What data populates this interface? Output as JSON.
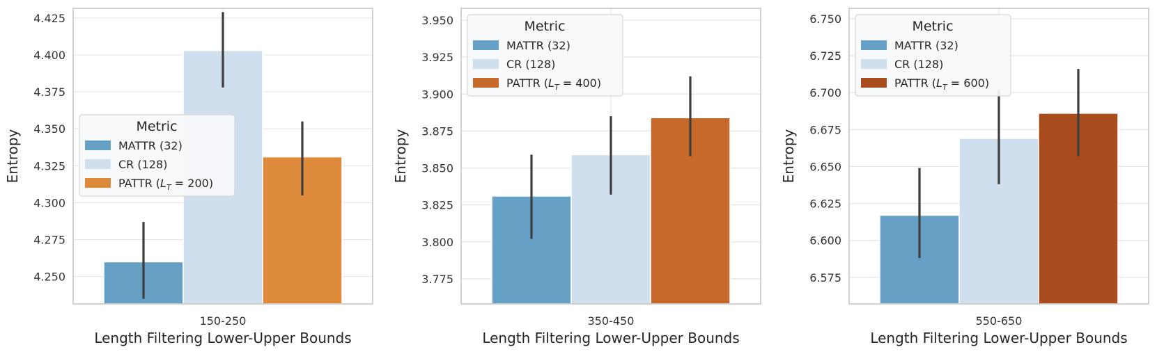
{
  "chart_data": [
    {
      "type": "bar",
      "categories": [
        "150-250"
      ],
      "xlabel": "Length Filtering Lower-Upper Bounds",
      "ylabel": "Entropy",
      "ylim": [
        4.2315,
        4.4315
      ],
      "yticks": [
        "4.250",
        "4.275",
        "4.300",
        "4.325",
        "4.350",
        "4.375",
        "4.400",
        "4.425"
      ],
      "grid": true,
      "legend": {
        "title": "Metric",
        "placement": "center-left"
      },
      "series": [
        {
          "name": "MATTR (32)",
          "values": [
            4.26
          ],
          "error": [
            4.235,
            4.287
          ],
          "color": "#67a0c5"
        },
        {
          "name": "CR (128)",
          "values": [
            4.403
          ],
          "error": [
            4.378,
            4.429
          ],
          "color": "#d0dfed"
        },
        {
          "name": "PATTR (L_T = 200)",
          "name_parts": [
            "PATTR (",
            "L",
            "T",
            " = 200)"
          ],
          "values": [
            4.331
          ],
          "error": [
            4.305,
            4.355
          ],
          "color": "#dd8a3b"
        }
      ]
    },
    {
      "type": "bar",
      "categories": [
        "350-450"
      ],
      "xlabel": "Length Filtering Lower-Upper Bounds",
      "ylabel": "Entropy",
      "ylim": [
        3.758,
        3.958
      ],
      "yticks": [
        "3.775",
        "3.800",
        "3.825",
        "3.850",
        "3.875",
        "3.900",
        "3.925",
        "3.950"
      ],
      "grid": true,
      "legend": {
        "title": "Metric",
        "placement": "upper-left"
      },
      "series": [
        {
          "name": "MATTR (32)",
          "values": [
            3.831
          ],
          "error": [
            3.802,
            3.859
          ],
          "color": "#67a0c5"
        },
        {
          "name": "CR (128)",
          "values": [
            3.859
          ],
          "error": [
            3.832,
            3.885
          ],
          "color": "#d0dfed"
        },
        {
          "name": "PATTR (L_T = 400)",
          "name_parts": [
            "PATTR (",
            "L",
            "T",
            " = 400)"
          ],
          "values": [
            3.884
          ],
          "error": [
            3.858,
            3.912
          ],
          "color": "#c6692a"
        }
      ]
    },
    {
      "type": "bar",
      "categories": [
        "550-650"
      ],
      "xlabel": "Length Filtering Lower-Upper Bounds",
      "ylabel": "Entropy",
      "ylim": [
        6.557,
        6.757
      ],
      "yticks": [
        "6.575",
        "6.600",
        "6.625",
        "6.650",
        "6.675",
        "6.700",
        "6.725",
        "6.750"
      ],
      "grid": true,
      "legend": {
        "title": "Metric",
        "placement": "upper-left"
      },
      "series": [
        {
          "name": "MATTR (32)",
          "values": [
            6.617
          ],
          "error": [
            6.588,
            6.649
          ],
          "color": "#67a0c5"
        },
        {
          "name": "CR (128)",
          "values": [
            6.669
          ],
          "error": [
            6.638,
            6.702
          ],
          "color": "#d0dfed"
        },
        {
          "name": "PATTR (L_T = 600)",
          "name_parts": [
            "PATTR (",
            "L",
            "T",
            " = 600)"
          ],
          "values": [
            6.686
          ],
          "error": [
            6.657,
            6.716
          ],
          "color": "#a84c1e"
        }
      ]
    }
  ]
}
